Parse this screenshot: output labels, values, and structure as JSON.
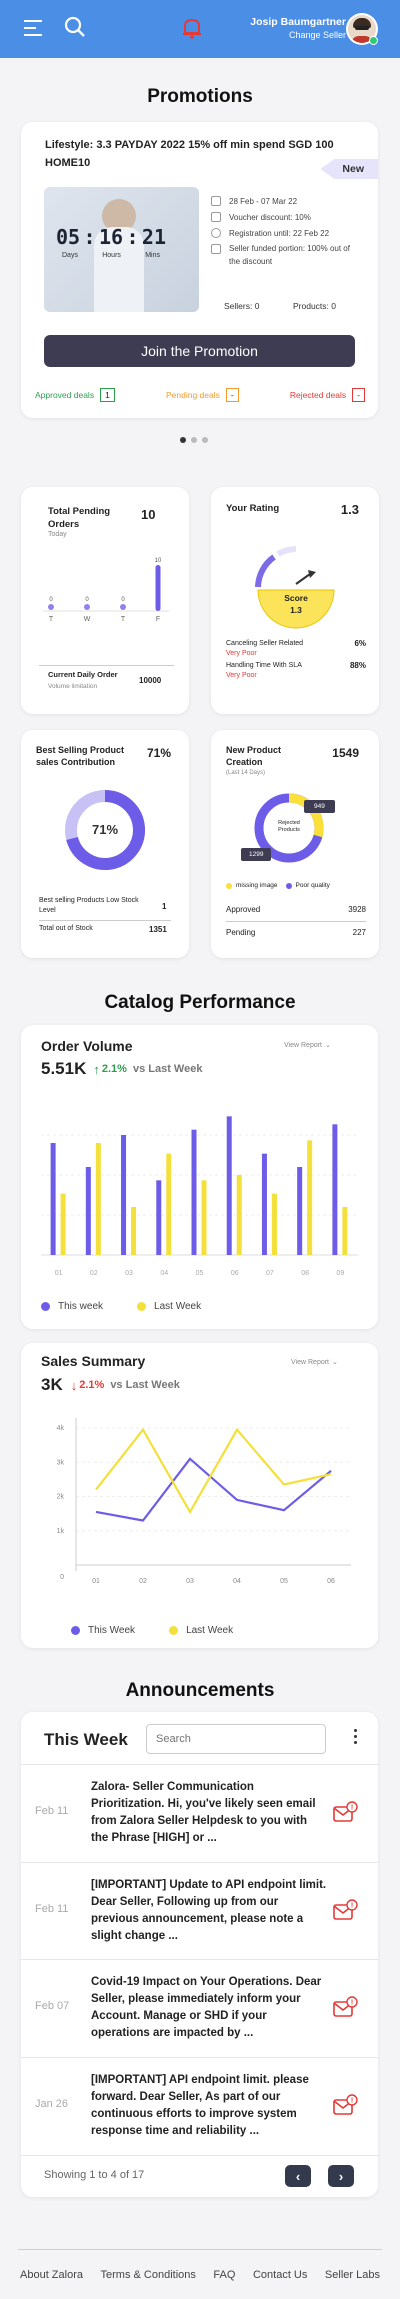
{
  "header": {
    "user_name": "Josip Baumgartner",
    "user_role": "Change Seller"
  },
  "promotions": {
    "title": "Promotions",
    "promo_title": "Lifestyle:  3.3 PAYDAY 2022   15% off min spend SGD 100 HOME10",
    "badge": "New",
    "timer": {
      "days": "05",
      "hours": "16",
      "mins": "21",
      "days_label": "Days",
      "hours_label": "Hours",
      "mins_label": "Mins"
    },
    "details": [
      "28 Feb - 07 Mar 22",
      "Voucher discount: 10%",
      "Registration until: 22 Feb 22",
      "Seller funded portion: 100% out of the discount"
    ],
    "sellers": "Sellers:  0",
    "products": "Products:  0",
    "join_label": "Join the Promotion",
    "deals": {
      "approved_label": "Approved deals",
      "approved_count": "1",
      "pending_label": "Pending deals",
      "pending_count": "-",
      "rejected_label": "Rejected deals",
      "rejected_count": "-"
    }
  },
  "pending_orders": {
    "title": "Total Pending Orders",
    "subtitle": "Today",
    "total": "10",
    "chart_data": {
      "type": "bar",
      "categories": [
        "T",
        "W",
        "T",
        "F"
      ],
      "values": [
        0,
        0,
        0,
        10
      ]
    },
    "current_label": "Current Daily Order",
    "current_value": "10000",
    "volume_label": "Volume limitation"
  },
  "rating": {
    "title": "Your Rating",
    "value": "1.3",
    "score_label": "Score",
    "score_value": "1.3",
    "rows": [
      {
        "label": "Canceling  Seller Related",
        "value": "6%",
        "status": "Very Poor"
      },
      {
        "label": "Handling Time With SLA",
        "value": "88%",
        "status": "Very Poor"
      }
    ]
  },
  "best_selling": {
    "title": "Best Selling Product sales Contribution",
    "value": "71%",
    "donut_label": "71%",
    "percent": 71,
    "low_stock_label": "Best selling Products Low Stock Level",
    "low_stock_value": "1",
    "out_stock_label": "Total out of Stock",
    "out_stock_value": "1351"
  },
  "new_product": {
    "title": "New Product Creation",
    "subtitle": "(Last 14 Days)",
    "value": "1549",
    "donut_center": "Rejected Products",
    "tag_top": "949",
    "tag_bottom": "1299",
    "legend_missing": "missing image",
    "legend_poor": "Poor quality",
    "approved_label": "Approved",
    "approved_value": "3928",
    "pending_label": "Pending",
    "pending_value": "227"
  },
  "catalog": {
    "title": "Catalog Performance",
    "order_volume": {
      "title": "Order Volume",
      "view_report": "View Report",
      "value": "5.51K",
      "change": "2.1%",
      "vs": "vs Last Week",
      "chart_data": {
        "type": "bar",
        "categories": [
          "01",
          "02",
          "03",
          "04",
          "05",
          "06",
          "07",
          "08",
          "09"
        ],
        "series": [
          {
            "name": "This week",
            "values": [
              42,
              33,
              45,
              28,
              47,
              52,
              38,
              33,
              49
            ]
          },
          {
            "name": "Last Week",
            "values": [
              23,
              42,
              18,
              38,
              28,
              30,
              23,
              43,
              18
            ]
          }
        ],
        "ylim": [
          0,
          60
        ]
      }
    },
    "sales_summary": {
      "title": "Sales Summary",
      "view_report": "View Report",
      "value": "3K",
      "change": "2.1%",
      "vs": "vs Last Week",
      "chart_data": {
        "type": "line",
        "categories": [
          "01",
          "02",
          "03",
          "04",
          "05",
          "06"
        ],
        "y_ticks": [
          "0",
          "1k",
          "2k",
          "3k",
          "4k"
        ],
        "ylim": [
          0,
          4000
        ],
        "series": [
          {
            "name": "This Week",
            "values": [
              1550,
              1300,
              3100,
              1900,
              1600,
              2750
            ]
          },
          {
            "name": "Last Week",
            "values": [
              2200,
              3950,
              1550,
              3950,
              2350,
              2650
            ]
          }
        ]
      }
    },
    "colors": {
      "this_week": "#6c5ce7",
      "last_week": "#f3e03b"
    }
  },
  "announcements": {
    "title": "Announcements",
    "filter_title": "This Week",
    "search_placeholder": "Search",
    "items": [
      {
        "date": "Feb 11",
        "text": "Zalora- Seller Communication Prioritization. Hi, you've likely seen email from Zalora Seller Helpdesk to you with the Phrase [HIGH] or ..."
      },
      {
        "date": "Feb 11",
        "text": "[IMPORTANT] Update to API endpoint limit. Dear Seller, Following up from our previous announcement, please note a slight change ..."
      },
      {
        "date": "Feb 07",
        "text": "Covid-19 Impact on Your Operations. Dear Seller, please immediately inform your Account. Manage or SHD if your operations are impacted by ..."
      },
      {
        "date": "Jan 26",
        "text": "[IMPORTANT] API endpoint limit. please forward. Dear Seller, As part of our continuous efforts to improve system response time and reliability ..."
      }
    ],
    "pagination": "Showing 1 to 4 of 17"
  },
  "footer": {
    "links": [
      "About Zalora",
      "Terms & Conditions",
      "FAQ",
      "Contact Us",
      "Seller Labs"
    ]
  }
}
